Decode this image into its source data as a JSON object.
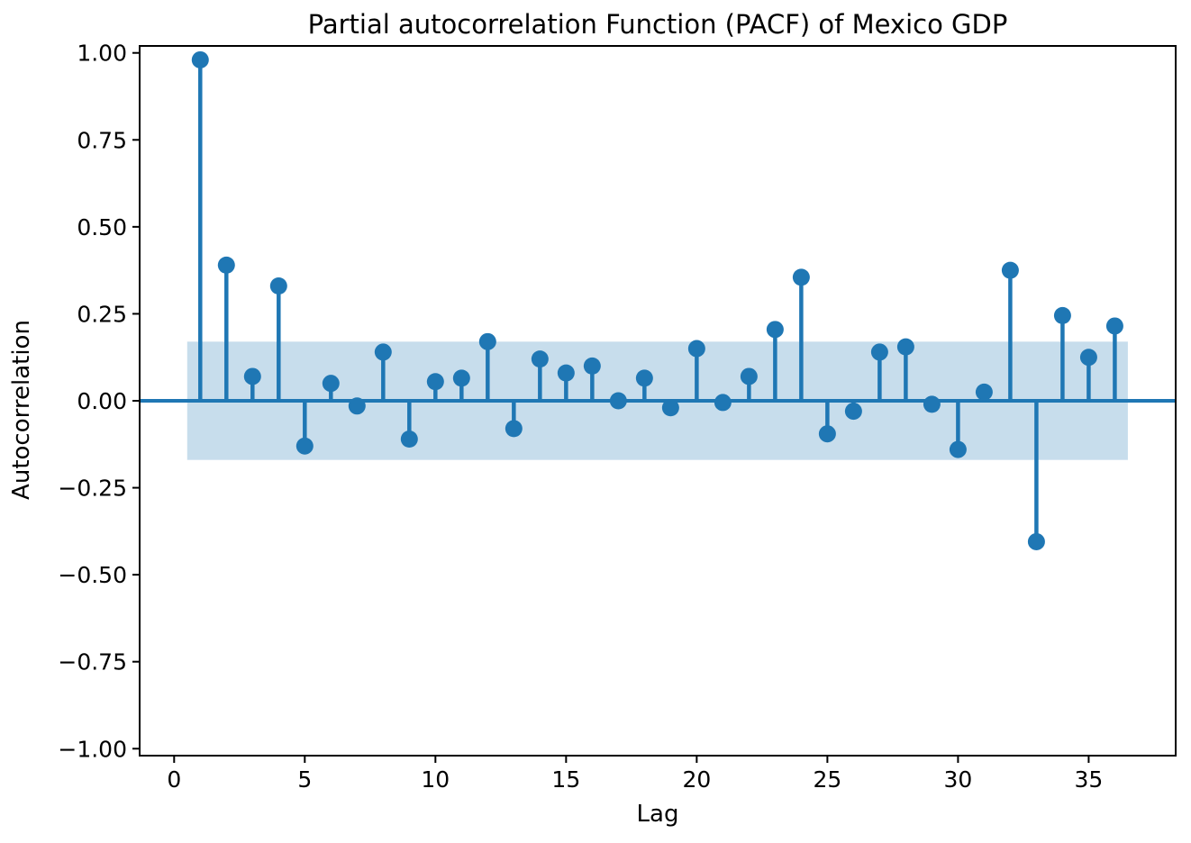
{
  "chart_data": {
    "type": "stem",
    "title": "Partial autocorrelation Function (PACF) of Mexico GDP",
    "xlabel": "Lag",
    "ylabel": "Autocorrelation",
    "lags": [
      1,
      2,
      3,
      4,
      5,
      6,
      7,
      8,
      9,
      10,
      11,
      12,
      13,
      14,
      15,
      16,
      17,
      18,
      19,
      20,
      21,
      22,
      23,
      24,
      25,
      26,
      27,
      28,
      29,
      30,
      31,
      32,
      33,
      34,
      35,
      36
    ],
    "values": [
      0.98,
      0.39,
      0.07,
      0.33,
      -0.13,
      0.05,
      -0.015,
      0.14,
      -0.11,
      0.055,
      0.065,
      0.17,
      -0.08,
      0.12,
      0.08,
      0.1,
      0.0,
      0.065,
      -0.02,
      0.15,
      -0.005,
      0.07,
      0.205,
      0.355,
      -0.095,
      -0.03,
      0.14,
      0.155,
      -0.01,
      -0.14,
      0.025,
      0.375,
      -0.405,
      0.245,
      0.125,
      0.215
    ],
    "confidence_band": {
      "lower": -0.17,
      "upper": 0.17,
      "x_start": 0.5,
      "x_end": 36.5
    },
    "xlim": [
      -1.32,
      38.33
    ],
    "ylim": [
      -1.02,
      1.02
    ],
    "x_ticks": [
      0,
      5,
      10,
      15,
      20,
      25,
      30,
      35
    ],
    "x_tick_labels": [
      "0",
      "5",
      "10",
      "15",
      "20",
      "25",
      "30",
      "35"
    ],
    "y_ticks": [
      1.0,
      0.75,
      0.5,
      0.25,
      0.0,
      -0.25,
      -0.5,
      -0.75,
      -1.0
    ],
    "y_tick_labels": [
      "1.00",
      "0.75",
      "0.50",
      "0.25",
      "0.00",
      "−0.25",
      "−0.50",
      "−0.75",
      "−1.00"
    ],
    "legend": "none",
    "grid": false,
    "colors": {
      "stem": "#1f77b4",
      "marker": "#1f77b4",
      "zero_line": "#1f77b4",
      "band_fill": "#1f77b4",
      "band_opacity": 0.25,
      "axis": "#000000",
      "background": "#ffffff"
    }
  }
}
